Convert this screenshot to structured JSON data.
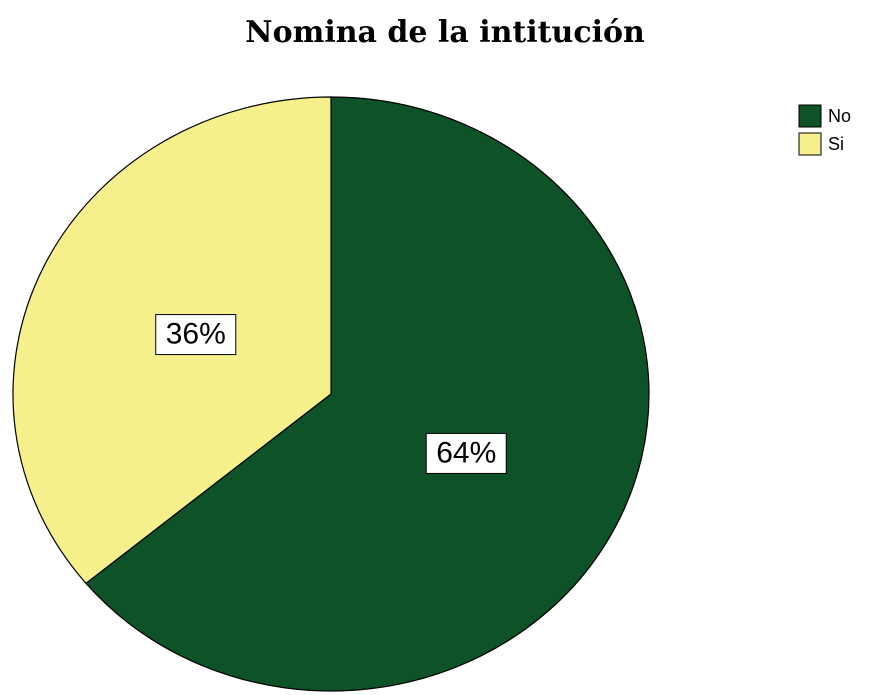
{
  "chart_data": {
    "type": "pie",
    "title": "Nomina de la intitución",
    "categories": [
      "No",
      "Si"
    ],
    "values": [
      64,
      36
    ],
    "value_labels": [
      "64%",
      "36%"
    ],
    "colors": [
      "#0e5228",
      "#f5f08c"
    ],
    "legend": "upper right"
  }
}
